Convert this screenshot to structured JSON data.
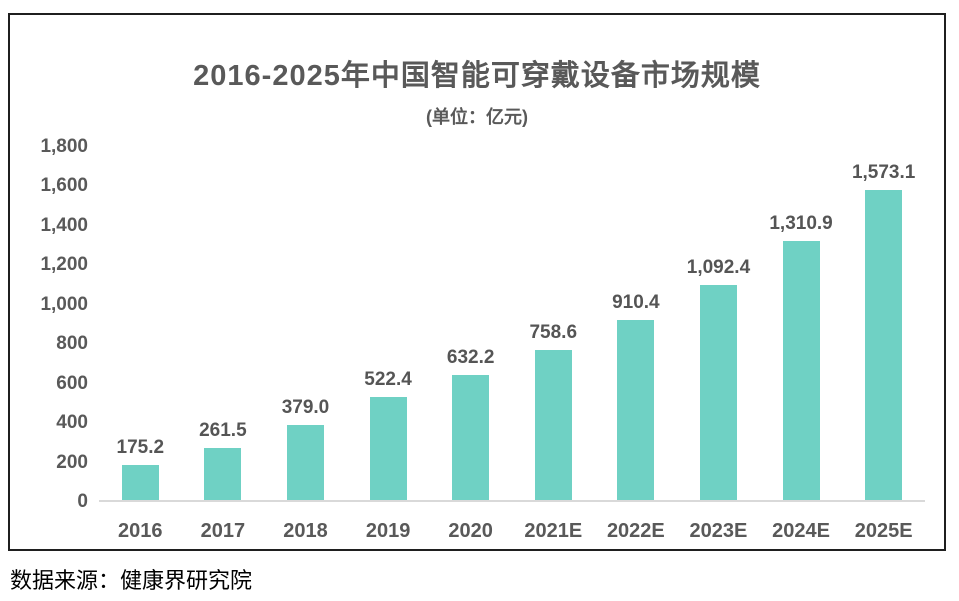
{
  "chart": {
    "title": "2016-2025年中国智能可穿戴设备市场规模",
    "subtitle": "(单位：亿元)"
  },
  "source": "数据来源：健康界研究院",
  "colors": {
    "bar": "#6fd1c4",
    "text": "#595959",
    "axis_line": "#d9d9d9",
    "frame_border": "#1f1f1f",
    "background": "#ffffff"
  },
  "chart_data": {
    "type": "bar",
    "title": "2016-2025年中国智能可穿戴设备市场规模",
    "subtitle": "(单位：亿元)",
    "categories": [
      "2016",
      "2017",
      "2018",
      "2019",
      "2020",
      "2021E",
      "2022E",
      "2023E",
      "2024E",
      "2025E"
    ],
    "values": [
      175.2,
      261.5,
      379.0,
      522.4,
      632.2,
      758.6,
      910.4,
      1092.4,
      1310.9,
      1573.1
    ],
    "value_labels": [
      "175.2",
      "261.5",
      "379.0",
      "522.4",
      "632.2",
      "758.6",
      "910.4",
      "1,092.4",
      "1,310.9",
      "1,573.1"
    ],
    "xlabel": "",
    "ylabel": "",
    "ylim": [
      0,
      1800
    ],
    "yticks": [
      {
        "value": 0,
        "label": "0"
      },
      {
        "value": 200,
        "label": "200"
      },
      {
        "value": 400,
        "label": "400"
      },
      {
        "value": 600,
        "label": "600"
      },
      {
        "value": 800,
        "label": "800"
      },
      {
        "value": 1000,
        "label": "1,000"
      },
      {
        "value": 1200,
        "label": "1,200"
      },
      {
        "value": 1400,
        "label": "1,400"
      },
      {
        "value": 1600,
        "label": "1,600"
      },
      {
        "value": 1800,
        "label": "1,800"
      }
    ],
    "grid": false,
    "legend": false,
    "bar_color": "#6fd1c4",
    "source": "数据来源：健康界研究院"
  }
}
